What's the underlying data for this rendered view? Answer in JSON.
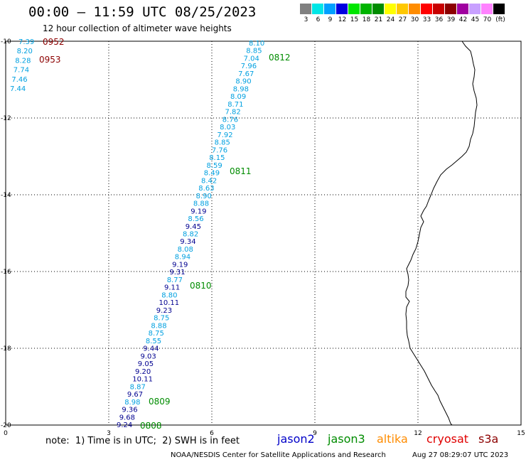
{
  "header": {
    "title": "00:00 – 11:59 UTC 08/25/2023",
    "subtitle": "12 hour collection of altimeter wave heights"
  },
  "legend": {
    "unit": "(ft)",
    "items": [
      {
        "value": "3",
        "color": "#808080"
      },
      {
        "value": "6",
        "color": "#00e6e6"
      },
      {
        "value": "9",
        "color": "#00a0ff"
      },
      {
        "value": "12",
        "color": "#0000e0"
      },
      {
        "value": "15",
        "color": "#00e600"
      },
      {
        "value": "18",
        "color": "#00b400"
      },
      {
        "value": "21",
        "color": "#008c00"
      },
      {
        "value": "24",
        "color": "#ffff00"
      },
      {
        "value": "27",
        "color": "#ffc800"
      },
      {
        "value": "30",
        "color": "#ff8c00"
      },
      {
        "value": "33",
        "color": "#ff0000"
      },
      {
        "value": "36",
        "color": "#c80000"
      },
      {
        "value": "39",
        "color": "#8c0000"
      },
      {
        "value": "42",
        "color": "#a000a0"
      },
      {
        "value": "45",
        "color": "#c8a0ff"
      },
      {
        "value": "70",
        "color": "#ff82ff"
      },
      {
        "value": "",
        "color": "#000000"
      }
    ]
  },
  "axes": {
    "x_ticks": [
      "0",
      "3",
      "6",
      "9",
      "12",
      "15"
    ],
    "y_ticks": [
      "-10",
      "-12",
      "-14",
      "-16",
      "-18",
      "-20"
    ]
  },
  "colors": {
    "jason2": "#0000c8",
    "jason3": "#008c00",
    "altika": "#ff8c00",
    "cryosat": "#e00000",
    "s3a": "#8c0000",
    "swh_light": "#00a0e0",
    "swh_dark": "#000090",
    "time_green": "#008c00",
    "time_dark_red": "#8c0000"
  },
  "map": {
    "track_readings": [
      {
        "value": "8.10",
        "shade": "light"
      },
      {
        "value": "8.85",
        "shade": "light"
      },
      {
        "value": "7.04",
        "shade": "light"
      },
      {
        "value": "7.96",
        "shade": "light"
      },
      {
        "value": "7.67",
        "shade": "light"
      },
      {
        "value": "8.90",
        "shade": "light"
      },
      {
        "value": "8.98",
        "shade": "light"
      },
      {
        "value": "8.09",
        "shade": "light"
      },
      {
        "value": "8.71",
        "shade": "light"
      },
      {
        "value": "7.82",
        "shade": "light"
      },
      {
        "value": "8.76",
        "shade": "light"
      },
      {
        "value": "8.03",
        "shade": "light"
      },
      {
        "value": "7.92",
        "shade": "light"
      },
      {
        "value": "8.85",
        "shade": "light"
      },
      {
        "value": "7.76",
        "shade": "light"
      },
      {
        "value": "8.15",
        "shade": "light"
      },
      {
        "value": "8.59",
        "shade": "light"
      },
      {
        "value": "8.49",
        "shade": "light"
      },
      {
        "value": "8.42",
        "shade": "light"
      },
      {
        "value": "8.63",
        "shade": "light"
      },
      {
        "value": "8.90",
        "shade": "light"
      },
      {
        "value": "8.88",
        "shade": "light"
      },
      {
        "value": "9.19",
        "shade": "dark"
      },
      {
        "value": "8.56",
        "shade": "light"
      },
      {
        "value": "9.45",
        "shade": "dark"
      },
      {
        "value": "8.82",
        "shade": "light"
      },
      {
        "value": "9.34",
        "shade": "dark"
      },
      {
        "value": "8.08",
        "shade": "light"
      },
      {
        "value": "8.94",
        "shade": "light"
      },
      {
        "value": "9.19",
        "shade": "dark"
      },
      {
        "value": "9.31",
        "shade": "dark"
      },
      {
        "value": "8.77",
        "shade": "light"
      },
      {
        "value": "9.11",
        "shade": "dark"
      },
      {
        "value": "8.80",
        "shade": "light"
      },
      {
        "value": "10.11",
        "shade": "dark"
      },
      {
        "value": "9.23",
        "shade": "dark"
      },
      {
        "value": "8.75",
        "shade": "light"
      },
      {
        "value": "8.88",
        "shade": "light"
      },
      {
        "value": "8.75",
        "shade": "light"
      },
      {
        "value": "8.55",
        "shade": "light"
      },
      {
        "value": "9.44",
        "shade": "dark"
      },
      {
        "value": "9.03",
        "shade": "dark"
      },
      {
        "value": "9.05",
        "shade": "dark"
      },
      {
        "value": "9.20",
        "shade": "dark"
      },
      {
        "value": "10.11",
        "shade": "dark"
      },
      {
        "value": "8.87",
        "shade": "light"
      },
      {
        "value": "9.67",
        "shade": "dark"
      },
      {
        "value": "8.98",
        "shade": "light"
      },
      {
        "value": "9.36",
        "shade": "dark"
      },
      {
        "value": "9.68",
        "shade": "dark"
      },
      {
        "value": "9.24",
        "shade": "dark"
      }
    ],
    "corner_readings": [
      {
        "value": "7.39",
        "shade": "light"
      },
      {
        "value": "8.20",
        "shade": "light"
      },
      {
        "value": "8.28",
        "shade": "light"
      },
      {
        "value": "7.74",
        "shade": "light"
      },
      {
        "value": "7.46",
        "shade": "light"
      },
      {
        "value": "7.44",
        "shade": "light"
      }
    ],
    "track_times": [
      {
        "value": "0812",
        "color": "green"
      },
      {
        "value": "0811",
        "color": "green"
      },
      {
        "value": "0810",
        "color": "green"
      },
      {
        "value": "0809",
        "color": "green"
      },
      {
        "value": "0808",
        "color": "green"
      }
    ],
    "corner_times": [
      {
        "value": "0952",
        "color": "dark_red"
      },
      {
        "value": "0953",
        "color": "dark_red"
      }
    ]
  },
  "footer": {
    "note": "note:  1) Time is in UTC;  2) SWH is in feet",
    "satellites": {
      "jason2": "jason2",
      "jason3": "jason3",
      "altika": "altika",
      "cryosat": "cryosat",
      "s3a": "s3a"
    },
    "credit": "NOAA/NESDIS Center for Satellite Applications and Research",
    "generated": "Aug 27 08:29:07 UTC 2023"
  }
}
